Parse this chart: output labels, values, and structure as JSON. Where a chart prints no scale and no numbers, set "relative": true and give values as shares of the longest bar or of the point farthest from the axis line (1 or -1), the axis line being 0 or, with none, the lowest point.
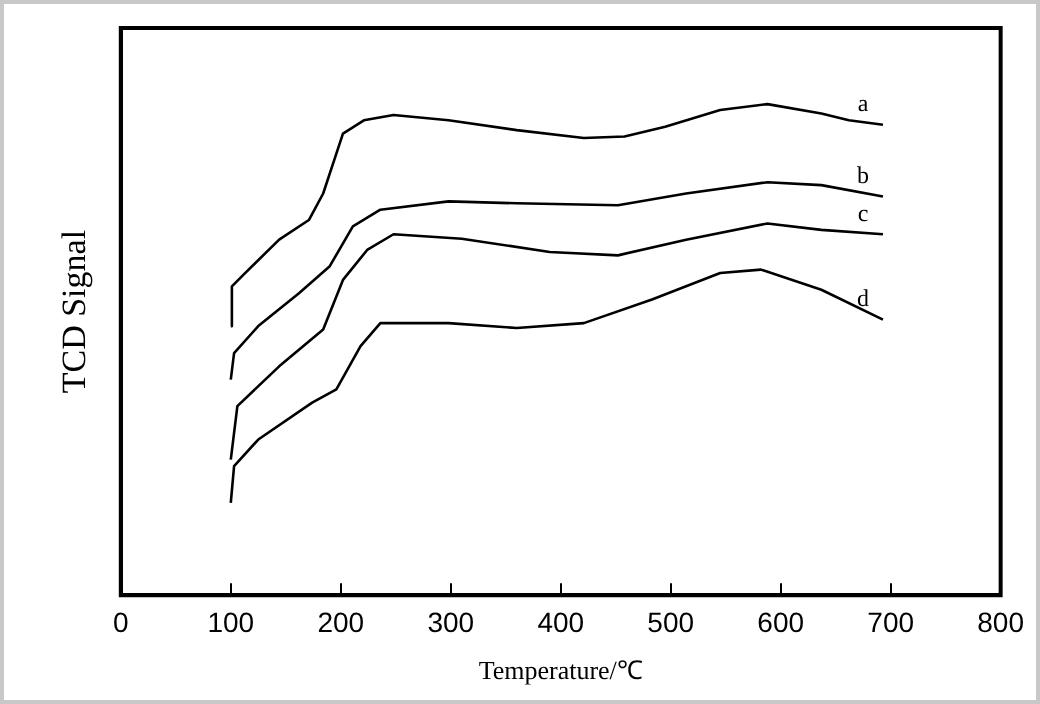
{
  "chart_data": {
    "type": "line",
    "relative": true,
    "xlabel": "Temperature/℃",
    "ylabel": "TCD Signal",
    "xlim": [
      0,
      800
    ],
    "xticks": [
      0,
      100,
      200,
      300,
      400,
      500,
      600,
      700,
      800
    ],
    "grid": false,
    "legend": false,
    "marker": "none",
    "line_style": "solid",
    "series": [
      {
        "name": "a",
        "color": "#000000",
        "x": [
          100,
          101,
          113,
          144,
          171,
          184,
          202,
          221,
          248,
          298,
          360,
          421,
          458,
          495,
          545,
          588,
          637,
          662,
          693
        ],
        "values": [
          0.548,
          0.629,
          0.656,
          0.724,
          0.764,
          0.818,
          0.94,
          0.967,
          0.978,
          0.967,
          0.947,
          0.931,
          0.934,
          0.954,
          0.988,
          1,
          0.981,
          0.967,
          0.958
        ]
      },
      {
        "name": "b",
        "color": "#000000",
        "x": [
          100,
          103,
          125,
          162,
          190,
          211,
          236,
          298,
          360,
          452,
          514,
          588,
          637,
          693
        ],
        "values": [
          0.439,
          0.493,
          0.548,
          0.615,
          0.67,
          0.751,
          0.785,
          0.802,
          0.798,
          0.794,
          0.818,
          0.841,
          0.835,
          0.812
        ]
      },
      {
        "name": "c",
        "color": "#000000",
        "x": [
          100,
          106,
          144,
          184,
          202,
          224,
          248,
          310,
          390,
          452,
          514,
          588,
          637,
          693
        ],
        "values": [
          0.276,
          0.385,
          0.466,
          0.541,
          0.642,
          0.703,
          0.735,
          0.726,
          0.699,
          0.692,
          0.724,
          0.757,
          0.744,
          0.735
        ]
      },
      {
        "name": "d",
        "color": "#000000",
        "x": [
          100,
          103,
          125,
          174,
          196,
          218,
          236,
          298,
          360,
          421,
          483,
          545,
          582,
          637,
          693
        ],
        "values": [
          0.188,
          0.263,
          0.317,
          0.392,
          0.419,
          0.507,
          0.554,
          0.554,
          0.544,
          0.554,
          0.602,
          0.656,
          0.663,
          0.622,
          0.561
        ]
      }
    ]
  }
}
